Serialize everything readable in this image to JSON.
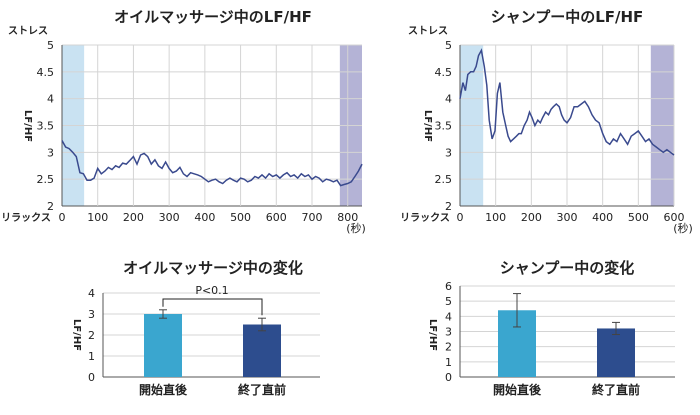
{
  "chart_data": [
    {
      "type": "line",
      "title": "オイルマッサージ中のLF/HF",
      "ylabel": "LF/HF",
      "y_top_label": "ストレス",
      "y_bottom_label": "リラックス",
      "x_unit": "(秒)",
      "xlim": [
        0,
        840
      ],
      "ylim": [
        2,
        5
      ],
      "x_ticks": [
        "0",
        "100",
        "200",
        "300",
        "400",
        "500",
        "600",
        "700",
        "800"
      ],
      "y_ticks": [
        "2",
        "2.5",
        "3",
        "3.5",
        "4",
        "4.5",
        "5"
      ],
      "grid": true,
      "shaded_regions": [
        {
          "from": 0,
          "to": 62,
          "color": "#c9e2f2"
        },
        {
          "from": 778,
          "to": 840,
          "color": "#b4b3d6"
        }
      ],
      "series_color": "#3a4a8e",
      "x": [
        0,
        10,
        20,
        30,
        40,
        50,
        60,
        70,
        80,
        90,
        100,
        110,
        120,
        130,
        140,
        150,
        160,
        170,
        180,
        190,
        200,
        210,
        220,
        230,
        240,
        250,
        260,
        270,
        280,
        290,
        300,
        310,
        320,
        330,
        340,
        350,
        360,
        370,
        380,
        390,
        400,
        410,
        420,
        430,
        440,
        450,
        460,
        470,
        480,
        490,
        500,
        510,
        520,
        530,
        540,
        550,
        560,
        570,
        580,
        590,
        600,
        610,
        620,
        630,
        640,
        650,
        660,
        670,
        680,
        690,
        700,
        710,
        720,
        730,
        740,
        750,
        760,
        770,
        780,
        790,
        800,
        810,
        820,
        830,
        840
      ],
      "values": [
        3.22,
        3.1,
        3.07,
        3.0,
        2.92,
        2.62,
        2.6,
        2.48,
        2.48,
        2.52,
        2.7,
        2.6,
        2.65,
        2.72,
        2.68,
        2.75,
        2.72,
        2.8,
        2.78,
        2.85,
        2.92,
        2.78,
        2.95,
        2.98,
        2.92,
        2.78,
        2.86,
        2.75,
        2.7,
        2.82,
        2.7,
        2.62,
        2.65,
        2.72,
        2.6,
        2.55,
        2.62,
        2.6,
        2.58,
        2.55,
        2.5,
        2.45,
        2.48,
        2.5,
        2.45,
        2.42,
        2.48,
        2.52,
        2.48,
        2.45,
        2.52,
        2.5,
        2.45,
        2.48,
        2.55,
        2.52,
        2.58,
        2.52,
        2.6,
        2.55,
        2.58,
        2.52,
        2.58,
        2.62,
        2.55,
        2.58,
        2.52,
        2.6,
        2.55,
        2.58,
        2.5,
        2.55,
        2.52,
        2.45,
        2.5,
        2.48,
        2.45,
        2.48,
        2.38,
        2.4,
        2.42,
        2.45,
        2.55,
        2.65,
        2.78
      ]
    },
    {
      "type": "line",
      "title": "シャンプー中のLF/HF",
      "ylabel": "LF/HF",
      "y_top_label": "ストレス",
      "y_bottom_label": "リラックス",
      "x_unit": "(秒)",
      "xlim": [
        0,
        600
      ],
      "ylim": [
        2,
        5
      ],
      "x_ticks": [
        "0",
        "100",
        "200",
        "300",
        "400",
        "500",
        "600"
      ],
      "y_ticks": [
        "2",
        "2.5",
        "3",
        "3.5",
        "4",
        "4.5",
        "5"
      ],
      "grid": true,
      "shaded_regions": [
        {
          "from": 0,
          "to": 65,
          "color": "#c9e2f2"
        },
        {
          "from": 535,
          "to": 600,
          "color": "#b4b3d6"
        }
      ],
      "series_color": "#3a4a8e",
      "x": [
        0,
        8,
        15,
        22,
        30,
        38,
        45,
        52,
        60,
        68,
        75,
        82,
        90,
        98,
        105,
        112,
        120,
        128,
        135,
        142,
        150,
        158,
        165,
        172,
        180,
        188,
        195,
        202,
        210,
        218,
        225,
        232,
        240,
        248,
        255,
        262,
        270,
        278,
        285,
        292,
        300,
        310,
        320,
        330,
        340,
        350,
        360,
        370,
        380,
        390,
        400,
        410,
        420,
        430,
        440,
        450,
        460,
        470,
        480,
        490,
        500,
        510,
        520,
        530,
        540,
        550,
        560,
        570,
        580,
        590,
        600
      ],
      "values": [
        4.0,
        4.3,
        4.15,
        4.45,
        4.5,
        4.5,
        4.6,
        4.8,
        4.9,
        4.6,
        4.25,
        3.6,
        3.25,
        3.4,
        4.1,
        4.3,
        3.75,
        3.5,
        3.3,
        3.2,
        3.25,
        3.3,
        3.35,
        3.35,
        3.5,
        3.6,
        3.75,
        3.65,
        3.5,
        3.6,
        3.55,
        3.65,
        3.75,
        3.7,
        3.8,
        3.85,
        3.9,
        3.85,
        3.7,
        3.6,
        3.55,
        3.65,
        3.85,
        3.85,
        3.9,
        3.95,
        3.85,
        3.7,
        3.6,
        3.55,
        3.35,
        3.2,
        3.15,
        3.25,
        3.2,
        3.35,
        3.25,
        3.15,
        3.3,
        3.35,
        3.4,
        3.3,
        3.2,
        3.25,
        3.15,
        3.1,
        3.05,
        3.0,
        3.05,
        3.0,
        2.95
      ]
    },
    {
      "type": "bar",
      "title": "オイルマッサージ中の変化",
      "ylabel": "LF/HF",
      "categories": [
        "開始直後",
        "終了直前"
      ],
      "values": [
        3.0,
        2.5
      ],
      "errors": [
        0.2,
        0.3
      ],
      "colors": [
        "#3aa6cf",
        "#2d4d8e"
      ],
      "ylim": [
        0,
        4
      ],
      "y_ticks": [
        "0",
        "1",
        "2",
        "3",
        "4"
      ],
      "annotation": "P<0.1"
    },
    {
      "type": "bar",
      "title": "シャンプー中の変化",
      "ylabel": "LF/HF",
      "categories": [
        "開始直後",
        "終了直前"
      ],
      "values": [
        4.4,
        3.2
      ],
      "errors": [
        1.1,
        0.4
      ],
      "colors": [
        "#3aa6cf",
        "#2d4d8e"
      ],
      "ylim": [
        0,
        6
      ],
      "y_ticks": [
        "0",
        "1",
        "2",
        "3",
        "4",
        "5",
        "6"
      ]
    }
  ]
}
